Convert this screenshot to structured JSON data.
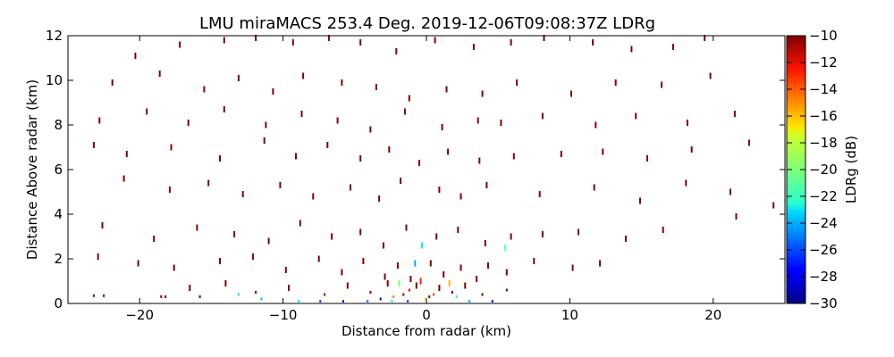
{
  "chart_data": {
    "type": "scatter",
    "title": "LMU miraMACS 253.4 Deg. 2019-12-06T09:08:37Z  LDRg",
    "xlabel": "Distance from radar (km)",
    "ylabel": "Distance Above radar  (km)",
    "xlim": [
      -25,
      25
    ],
    "ylim": [
      0,
      12
    ],
    "xticks": [
      "−20",
      "−10",
      "0",
      "10",
      "20"
    ],
    "xtick_values": [
      -20,
      -10,
      0,
      10,
      20
    ],
    "yticks": [
      "0",
      "2",
      "4",
      "6",
      "8",
      "10",
      "12"
    ],
    "ytick_values": [
      0,
      2,
      4,
      6,
      8,
      10,
      12
    ],
    "colorbar": {
      "label": "LDRg (dB)",
      "range": [
        -30,
        -10
      ],
      "ticks": [
        "−10",
        "−12",
        "−14",
        "−16",
        "−18",
        "−20",
        "−22",
        "−24",
        "−26",
        "−28",
        "−30"
      ],
      "tick_values": [
        -10,
        -12,
        -14,
        -16,
        -18,
        -20,
        -22,
        -24,
        -26,
        -28,
        -30
      ],
      "colormap": "jet"
    },
    "grid": false,
    "series": [
      {
        "description": "sparse speckle returns, mostly near -10 dB (dark red)",
        "points": [
          [
            -20.3,
            11.1,
            -10
          ],
          [
            -17.2,
            11.6,
            -10
          ],
          [
            -14.1,
            11.8,
            -10
          ],
          [
            -11.9,
            11.9,
            -10
          ],
          [
            -9.3,
            11.7,
            -10
          ],
          [
            -6.8,
            11.9,
            -10
          ],
          [
            -4.6,
            11.7,
            -10
          ],
          [
            -2.1,
            11.3,
            -10
          ],
          [
            0.6,
            11.8,
            -10
          ],
          [
            3.3,
            11.5,
            -10
          ],
          [
            5.9,
            11.7,
            -10
          ],
          [
            8.2,
            11.9,
            -10
          ],
          [
            11.6,
            11.7,
            -10
          ],
          [
            14.3,
            11.4,
            -10
          ],
          [
            17.2,
            11.5,
            -10
          ],
          [
            19.4,
            11.9,
            -10
          ],
          [
            -21.9,
            9.9,
            -10
          ],
          [
            -18.6,
            10.3,
            -10
          ],
          [
            -15.5,
            9.6,
            -10
          ],
          [
            -13.1,
            10.1,
            -10
          ],
          [
            -10.7,
            9.5,
            -10
          ],
          [
            -8.6,
            10.2,
            -10
          ],
          [
            -5.9,
            9.9,
            -10
          ],
          [
            -3.5,
            9.7,
            -10
          ],
          [
            -1.2,
            9.2,
            -10
          ],
          [
            1.4,
            9.6,
            -10
          ],
          [
            3.9,
            9.4,
            -10
          ],
          [
            6.3,
            9.9,
            -10
          ],
          [
            10.1,
            9.4,
            -10
          ],
          [
            13.2,
            9.9,
            -10
          ],
          [
            16.4,
            9.8,
            -10
          ],
          [
            19.8,
            10.2,
            -10
          ],
          [
            -22.8,
            8.2,
            -10
          ],
          [
            -19.5,
            8.6,
            -10
          ],
          [
            -16.6,
            8.1,
            -10
          ],
          [
            -14.1,
            8.7,
            -10
          ],
          [
            -11.2,
            8.0,
            -10
          ],
          [
            -8.7,
            8.5,
            -10
          ],
          [
            -6.2,
            8.2,
            -10
          ],
          [
            -3.9,
            7.8,
            -10
          ],
          [
            -1.5,
            8.6,
            -10
          ],
          [
            1.1,
            7.9,
            -10
          ],
          [
            3.6,
            8.2,
            -10
          ],
          [
            5.2,
            8.1,
            -10
          ],
          [
            8.1,
            8.4,
            -10
          ],
          [
            11.8,
            8.0,
            -10
          ],
          [
            14.6,
            8.4,
            -10
          ],
          [
            18.2,
            8.1,
            -10
          ],
          [
            21.5,
            8.5,
            -10
          ],
          [
            -23.2,
            7.1,
            -10
          ],
          [
            -20.9,
            6.7,
            -10
          ],
          [
            -17.8,
            7.0,
            -10
          ],
          [
            -14.4,
            6.5,
            -10
          ],
          [
            -11.3,
            7.3,
            -10
          ],
          [
            -9.1,
            6.6,
            -10
          ],
          [
            -6.9,
            7.1,
            -10
          ],
          [
            -4.6,
            6.5,
            -10
          ],
          [
            -2.6,
            6.9,
            -10
          ],
          [
            -0.5,
            6.3,
            -10
          ],
          [
            1.5,
            6.8,
            -10
          ],
          [
            3.7,
            6.4,
            -10
          ],
          [
            6.1,
            6.6,
            -10
          ],
          [
            9.4,
            6.7,
            -10
          ],
          [
            12.3,
            6.8,
            -10
          ],
          [
            15.4,
            6.5,
            -10
          ],
          [
            18.5,
            6.9,
            -10
          ],
          [
            22.5,
            7.2,
            -10
          ],
          [
            -21.1,
            5.6,
            -10
          ],
          [
            -17.9,
            5.1,
            -10
          ],
          [
            -15.2,
            5.4,
            -10
          ],
          [
            -12.8,
            4.9,
            -10
          ],
          [
            -10.2,
            5.3,
            -10
          ],
          [
            -7.9,
            4.8,
            -10
          ],
          [
            -5.3,
            5.2,
            -10
          ],
          [
            -3.3,
            4.7,
            -10
          ],
          [
            -1.8,
            5.5,
            -10
          ],
          [
            0.9,
            5.1,
            -10
          ],
          [
            2.4,
            4.8,
            -10
          ],
          [
            4.2,
            5.3,
            -10
          ],
          [
            7.9,
            4.9,
            -10
          ],
          [
            11.7,
            5.2,
            -10
          ],
          [
            14.9,
            4.6,
            -10
          ],
          [
            18.1,
            5.4,
            -10
          ],
          [
            21.2,
            5.0,
            -10
          ],
          [
            24.2,
            4.4,
            -10
          ],
          [
            -22.6,
            3.5,
            -10
          ],
          [
            -19.0,
            2.9,
            -10
          ],
          [
            -16.0,
            3.4,
            -10
          ],
          [
            -13.4,
            3.1,
            -10
          ],
          [
            -11.0,
            2.8,
            -10
          ],
          [
            -8.8,
            3.6,
            -10
          ],
          [
            -6.6,
            3.0,
            -10
          ],
          [
            -4.6,
            3.2,
            -10
          ],
          [
            -3.0,
            2.6,
            -10
          ],
          [
            -1.4,
            3.4,
            -10
          ],
          [
            0.7,
            3.0,
            -10
          ],
          [
            2.2,
            3.3,
            -10
          ],
          [
            4.1,
            2.7,
            -10
          ],
          [
            5.9,
            3.0,
            -10
          ],
          [
            8.1,
            3.1,
            -10
          ],
          [
            10.6,
            3.2,
            -10
          ],
          [
            13.9,
            2.9,
            -10
          ],
          [
            16.5,
            3.3,
            -10
          ],
          [
            21.6,
            3.9,
            -10
          ],
          [
            -22.9,
            2.1,
            -10
          ],
          [
            -20.1,
            1.8,
            -10
          ],
          [
            -17.6,
            1.6,
            -10
          ],
          [
            -14.4,
            1.9,
            -10
          ],
          [
            -12.1,
            2.1,
            -10
          ],
          [
            -9.8,
            1.5,
            -10
          ],
          [
            -7.5,
            2.0,
            -10
          ],
          [
            -5.9,
            1.4,
            -10
          ],
          [
            -4.4,
            1.9,
            -10
          ],
          [
            -2.9,
            1.2,
            -10
          ],
          [
            -2.0,
            1.7,
            -10
          ],
          [
            -1.1,
            1.1,
            -10
          ],
          [
            0.3,
            1.8,
            -10
          ],
          [
            1.2,
            1.3,
            -10
          ],
          [
            2.4,
            1.6,
            -10
          ],
          [
            3.5,
            1.1,
            -10
          ],
          [
            4.3,
            1.7,
            -10
          ],
          [
            5.6,
            1.4,
            -10
          ],
          [
            7.5,
            1.9,
            -10
          ],
          [
            10.2,
            1.6,
            -10
          ],
          [
            12.1,
            1.8,
            -10
          ],
          [
            -16.5,
            0.7,
            -10
          ],
          [
            -14.0,
            0.9,
            -10
          ],
          [
            -11.9,
            0.5,
            -10
          ],
          [
            -9.6,
            0.7,
            -10
          ],
          [
            -7.1,
            0.4,
            -10
          ],
          [
            -5.5,
            0.8,
            -10
          ],
          [
            -3.9,
            0.5,
            -10
          ],
          [
            -2.7,
            0.9,
            -10
          ],
          [
            -1.6,
            0.4,
            -10
          ],
          [
            -0.7,
            0.8,
            -10
          ],
          [
            0.2,
            0.3,
            -10
          ],
          [
            0.9,
            0.7,
            -10
          ],
          [
            1.8,
            0.5,
            -10
          ],
          [
            2.7,
            0.8,
            -10
          ],
          [
            3.9,
            0.4,
            -10
          ],
          [
            5.6,
            0.6,
            -10
          ],
          [
            -23.2,
            0.35,
            -10
          ],
          [
            -22.5,
            0.35,
            -10
          ],
          [
            -18.5,
            0.3,
            -10
          ],
          [
            -18.2,
            0.3,
            -10
          ],
          [
            -15.8,
            0.3,
            -10
          ],
          [
            -1.2,
            0.6,
            -12
          ],
          [
            -0.4,
            1.0,
            -13
          ],
          [
            0.5,
            0.4,
            -14
          ],
          [
            -2.3,
            0.3,
            -15
          ],
          [
            1.6,
            0.9,
            -16
          ],
          [
            -0.1,
            0.2,
            -18
          ],
          [
            -1.9,
            0.9,
            -20
          ],
          [
            2.1,
            0.3,
            -22
          ],
          [
            -7.4,
            0.1,
            -26
          ],
          [
            -5.8,
            0.1,
            -27
          ],
          [
            -4.1,
            0.1,
            -25
          ],
          [
            -3.2,
            0.2,
            -28
          ],
          [
            -11.5,
            0.2,
            -24
          ],
          [
            -8.9,
            0.1,
            -23
          ],
          [
            -2.4,
            0.1,
            -22
          ],
          [
            -1.3,
            0.1,
            -26
          ],
          [
            -0.8,
            1.8,
            -24
          ],
          [
            -0.3,
            2.6,
            -23
          ],
          [
            5.5,
            2.5,
            -21
          ],
          [
            3.0,
            0.1,
            -24
          ],
          [
            4.6,
            0.1,
            -27
          ],
          [
            -13.1,
            0.4,
            -23
          ]
        ]
      }
    ]
  }
}
